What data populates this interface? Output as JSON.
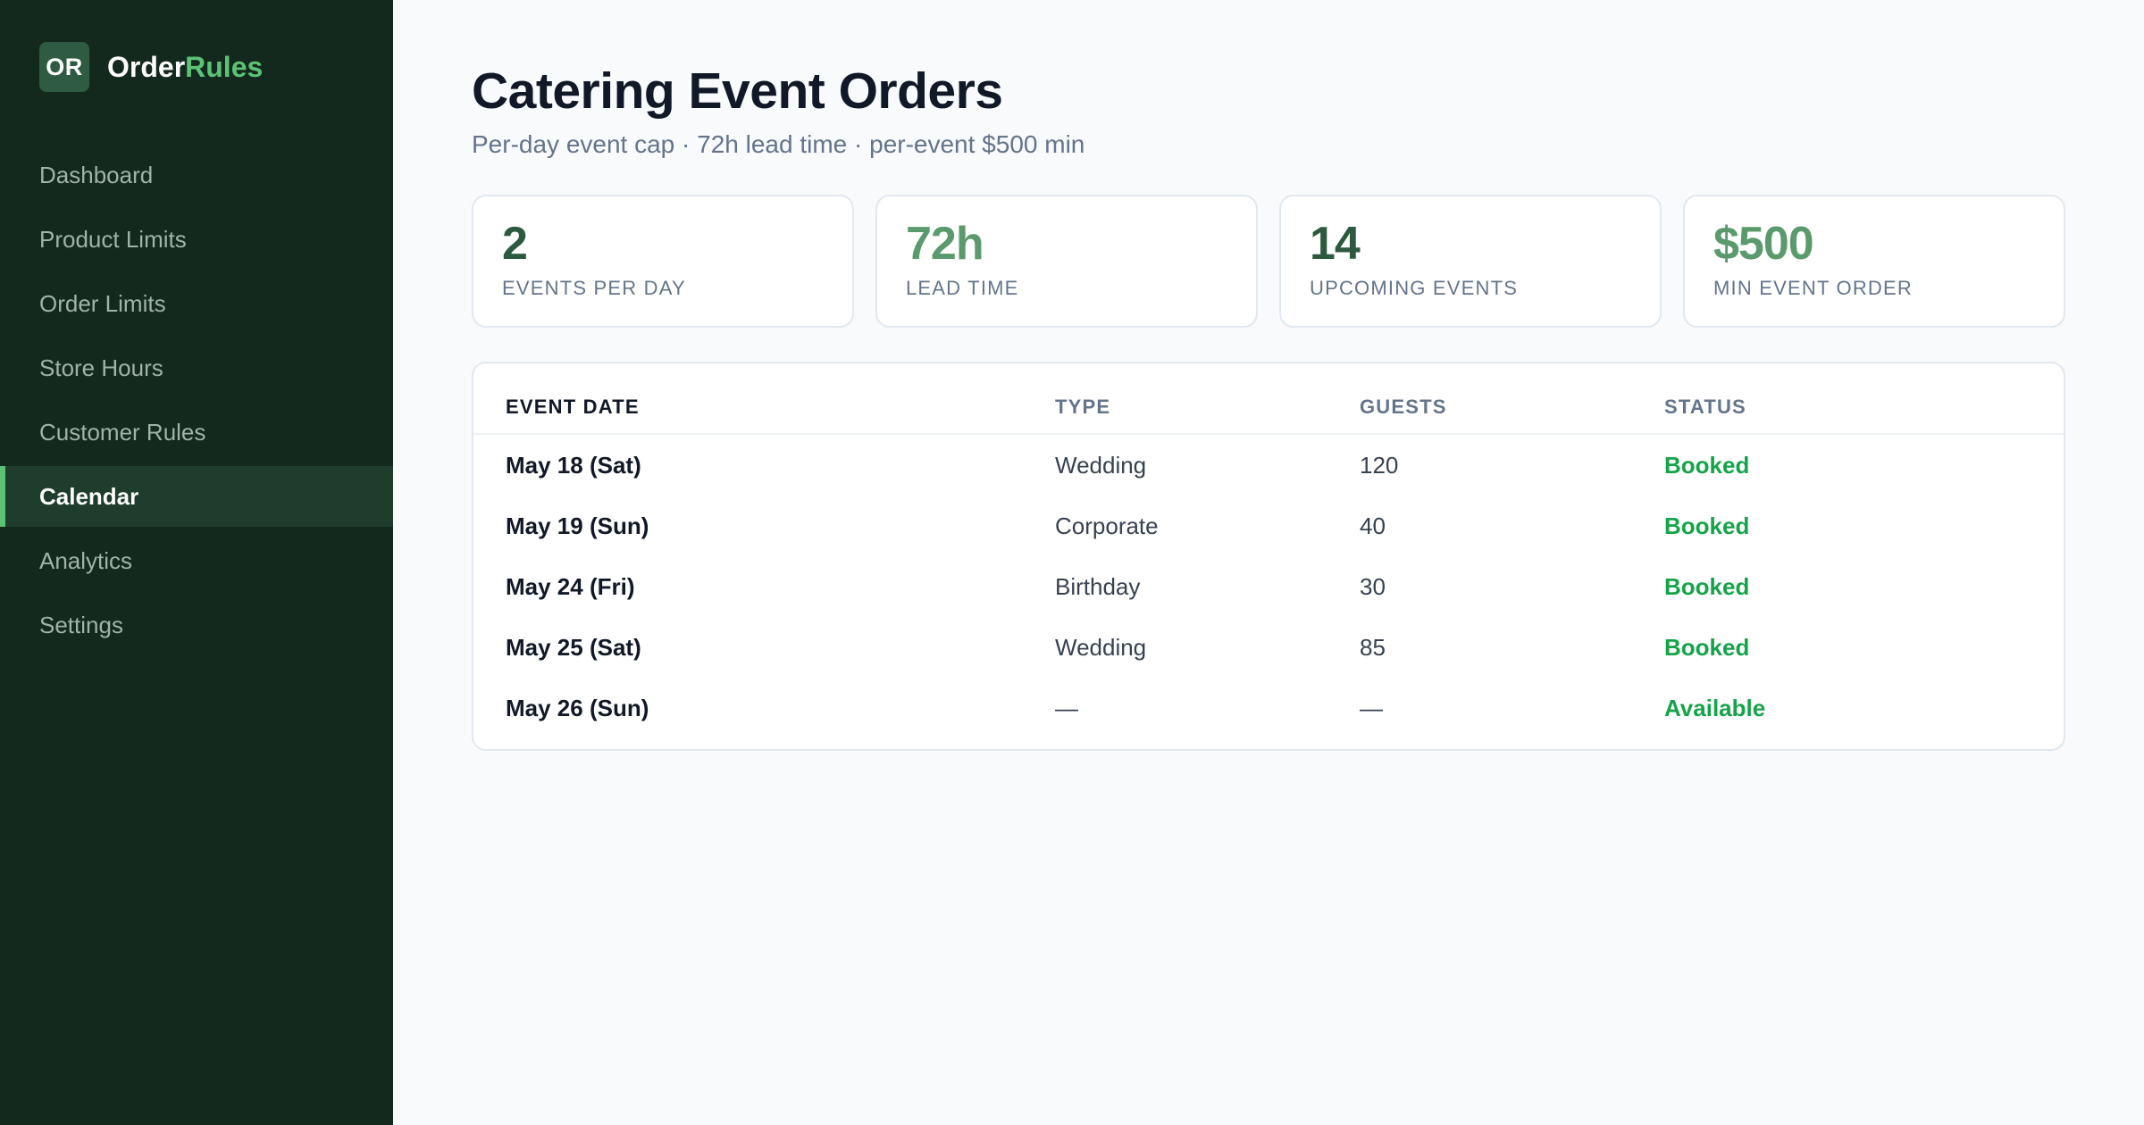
{
  "brand": {
    "logo_text": "OR",
    "name_part1": "Order",
    "name_part2": "Rules"
  },
  "sidebar": {
    "items": [
      {
        "label": "Dashboard",
        "active": false
      },
      {
        "label": "Product Limits",
        "active": false
      },
      {
        "label": "Order Limits",
        "active": false
      },
      {
        "label": "Store Hours",
        "active": false
      },
      {
        "label": "Customer Rules",
        "active": false
      },
      {
        "label": "Calendar",
        "active": true
      },
      {
        "label": "Analytics",
        "active": false
      },
      {
        "label": "Settings",
        "active": false
      }
    ]
  },
  "header": {
    "title": "Catering Event Orders",
    "subtitle": "Per-day event cap · 72h lead time · per-event $500 min"
  },
  "stats": [
    {
      "value": "2",
      "label": "Events per day"
    },
    {
      "value": "72h",
      "label": "Lead time"
    },
    {
      "value": "14",
      "label": "Upcoming events"
    },
    {
      "value": "$500",
      "label": "Min event order"
    }
  ],
  "table": {
    "headers": [
      "Event Date",
      "Type",
      "Guests",
      "Status"
    ],
    "rows": [
      {
        "date": "May 18 (Sat)",
        "type": "Wedding",
        "guests": "120",
        "status": "Booked"
      },
      {
        "date": "May 19 (Sun)",
        "type": "Corporate",
        "guests": "40",
        "status": "Booked"
      },
      {
        "date": "May 24 (Fri)",
        "type": "Birthday",
        "guests": "30",
        "status": "Booked"
      },
      {
        "date": "May 25 (Sat)",
        "type": "Wedding",
        "guests": "85",
        "status": "Booked"
      },
      {
        "date": "May 26 (Sun)",
        "type": "—",
        "guests": "—",
        "status": "Available"
      }
    ]
  },
  "colors": {
    "sidebar_bg": "#14291e",
    "accent": "#5cc275",
    "status_green": "#16a34a"
  }
}
